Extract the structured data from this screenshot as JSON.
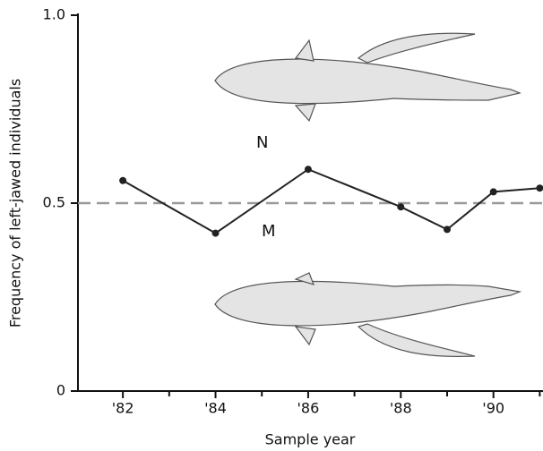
{
  "chart_data": {
    "type": "line",
    "x_label": "Sample year",
    "y_label": "Frequency of left-jawed individuals",
    "annotations": [
      "N",
      "M"
    ],
    "x": [
      82,
      84,
      86,
      88,
      89,
      90,
      91
    ],
    "series": [
      {
        "color": "#222",
        "values": [
          0.56,
          0.42,
          0.59,
          0.49,
          0.43,
          0.53,
          0.54
        ]
      }
    ],
    "xlim": [
      81.03,
      91.07
    ],
    "xticks": [
      {
        "value": 82,
        "label": "'82"
      },
      {
        "value": 84,
        "label": "'84"
      },
      {
        "value": 86,
        "label": "'86"
      },
      {
        "value": 88,
        "label": "'88"
      },
      {
        "value": 90,
        "label": "'90"
      }
    ],
    "xminorticks": [
      83,
      85,
      87,
      89,
      91
    ],
    "ylim": [
      0,
      1
    ],
    "yticks": [
      0,
      0.5,
      {
        "value": 1,
        "label": "1.0"
      }
    ],
    "hline": {
      "value": 0.5,
      "color": "#999"
    }
  }
}
